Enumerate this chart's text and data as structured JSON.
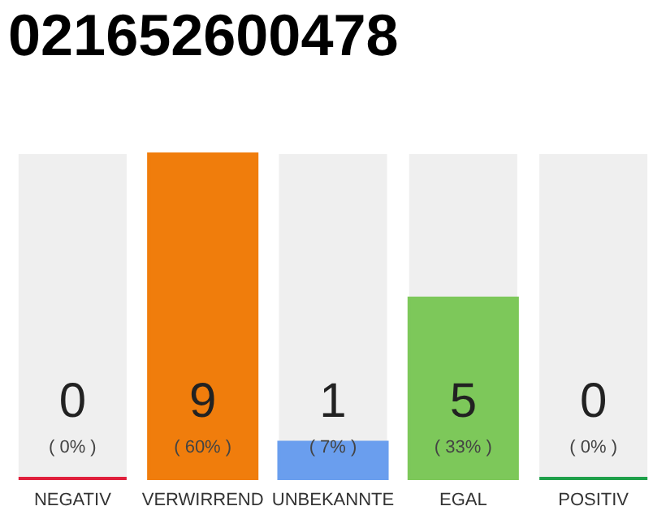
{
  "chart_data": {
    "type": "bar",
    "title": "021652600478",
    "categories": [
      "NEGATIV",
      "VERWIRREND",
      "UNBEKANNTE",
      "EGAL",
      "POSITIV"
    ],
    "values": [
      0,
      9,
      1,
      5,
      0
    ],
    "colors": [
      "#e0203c",
      "#f07d0c",
      "#6a9eee",
      "#7dc85a",
      "#1fa04a"
    ],
    "data_labels": true,
    "annotations": [
      "( 0% )",
      "( 60% )",
      "( 7% )",
      "( 33% )",
      "( 0% )"
    ]
  }
}
